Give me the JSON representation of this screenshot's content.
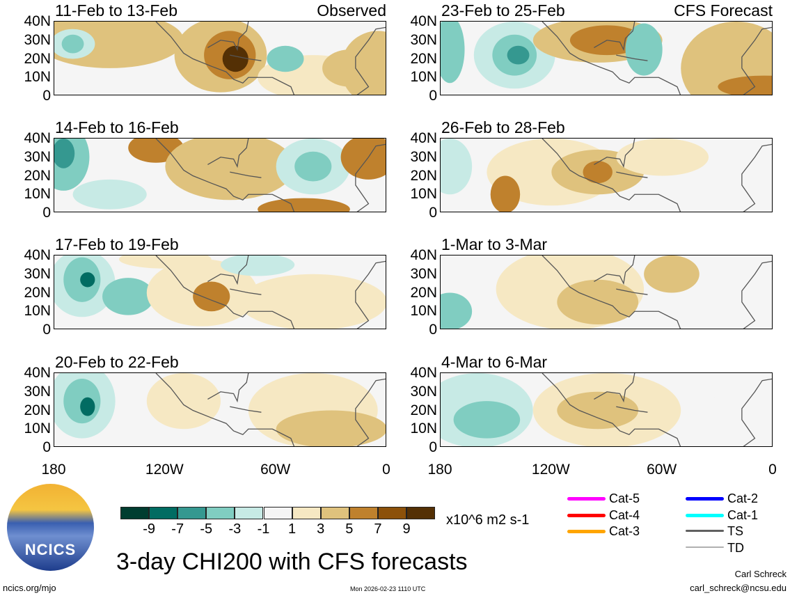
{
  "panels": [
    {
      "title": "11-Feb to 13-Feb",
      "tag": "Observed"
    },
    {
      "title": "23-Feb to 25-Feb",
      "tag": "CFS Forecast"
    },
    {
      "title": "14-Feb to 16-Feb",
      "tag": ""
    },
    {
      "title": "26-Feb to 28-Feb",
      "tag": ""
    },
    {
      "title": "17-Feb to 19-Feb",
      "tag": ""
    },
    {
      "title": "1-Mar to 3-Mar",
      "tag": ""
    },
    {
      "title": "20-Feb to 22-Feb",
      "tag": ""
    },
    {
      "title": "4-Mar to 6-Mar",
      "tag": ""
    }
  ],
  "y_ticks": [
    "40N",
    "30N",
    "20N",
    "10N",
    "0"
  ],
  "x_ticks": [
    "180",
    "120W",
    "60W",
    "0"
  ],
  "colorbar": {
    "colors": [
      "#003d30",
      "#016c62",
      "#359890",
      "#80cdc1",
      "#c7eae5",
      "#f5f5f5",
      "#f6e8c3",
      "#dfc27d",
      "#bf812d",
      "#8c510a",
      "#543005"
    ],
    "labels": [
      "-9",
      "-7",
      "-5",
      "-3",
      "-1",
      "1",
      "3",
      "5",
      "7",
      "9"
    ],
    "units": "x10^6 m2 s-1"
  },
  "legend": [
    {
      "label": "Cat-5",
      "color": "#ff00ff"
    },
    {
      "label": "Cat-4",
      "color": "#ff0000"
    },
    {
      "label": "Cat-3",
      "color": "#ffa500"
    },
    {
      "label": "Cat-2",
      "color": "#0000ff"
    },
    {
      "label": "Cat-1",
      "color": "#00ffff"
    },
    {
      "label": "TS",
      "color": "#606060"
    },
    {
      "label": "TD",
      "color": "#b0b0b0"
    }
  ],
  "title": "3-day CHI200 with CFS forecasts",
  "logo_text": "NCICS",
  "footer": {
    "left": "ncics.org/mjo",
    "center": "Mon 2026-02-23 1110 UTC",
    "author": "Carl Schreck",
    "email": "carl_schreck@ncsu.edu"
  }
}
